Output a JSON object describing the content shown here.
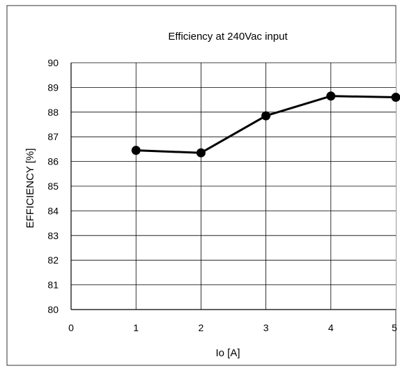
{
  "chart_data": {
    "type": "line",
    "title": "Efficiency at 240Vac input",
    "xlabel": "Io [A]",
    "ylabel": "EFFICIENCY [%]",
    "xlim": [
      0,
      5
    ],
    "ylim": [
      80,
      90
    ],
    "xticks": [
      "0",
      "1",
      "2",
      "3",
      "4",
      "5"
    ],
    "yticks": [
      "80",
      "81",
      "82",
      "83",
      "84",
      "85",
      "86",
      "87",
      "88",
      "89",
      "90"
    ],
    "grid": true,
    "series": [
      {
        "x": [
          1,
          2,
          3,
          4,
          5
        ],
        "values": [
          86.45,
          86.35,
          87.85,
          88.65,
          88.6
        ]
      }
    ],
    "colors": {
      "line": "#000000",
      "marker": "#000000",
      "grid": "#000000",
      "frame": "#000000",
      "background": "#ffffff"
    }
  }
}
